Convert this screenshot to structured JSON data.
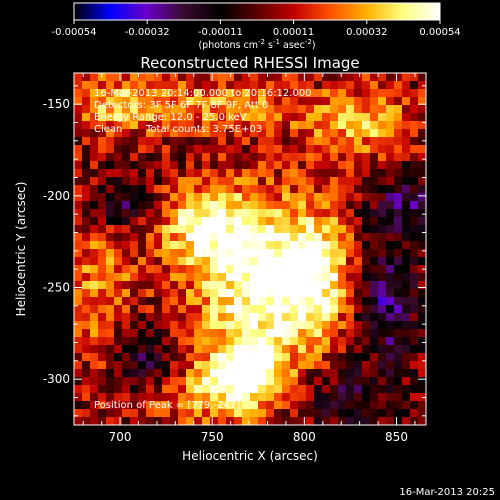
{
  "chart_data": {
    "type": "heatmap",
    "title": "Reconstructed RHESSI Image",
    "xlabel": "Heliocentric X (arcsec)",
    "ylabel": "Heliocentric Y (arcsec)",
    "xlim": [
      675,
      866
    ],
    "ylim": [
      -325,
      -133
    ],
    "x_ticks": [
      700,
      750,
      800,
      850
    ],
    "y_ticks": [
      -150,
      -200,
      -250,
      -300
    ],
    "colorbar": {
      "range": [
        -0.00054,
        0.00054
      ],
      "ticks": [
        "-0.00054",
        "-0.00032",
        "-0.00011",
        "0.00011",
        "0.00032",
        "0.00054"
      ],
      "unit_text": "(photons cm",
      "unit_exp1": "-2",
      "unit_mid": " s",
      "unit_exp2": "-1",
      "unit_mid2": " asec",
      "unit_exp3": "-2",
      "unit_end": ")",
      "colormap": [
        "#000000",
        "#0000ff",
        "#6a00c8",
        "#3a0a2e",
        "#000000",
        "#5a0000",
        "#c00000",
        "#ff5000",
        "#ffb000",
        "#ffff80",
        "#ffffff"
      ]
    },
    "annotations": {
      "time": "16-Mar-2013 20:14:00.000 to 20:16:12.000",
      "detectors": "Detectors: 3F 5F 6F 7F 8F 9F, Att 0",
      "energy": "Energy Range: 12.0 - 25.0 keV",
      "method": "Clean",
      "counts": "Total counts: 3.75E+03",
      "peak": "Position of Peak = [779,-247]"
    },
    "peak": {
      "x": 779,
      "y": -247
    },
    "blobs": [
      {
        "x": 778,
        "y": -247,
        "sx": 28,
        "sy": 32,
        "a": 1.0
      },
      {
        "x": 768,
        "y": -295,
        "sx": 14,
        "sy": 12,
        "a": 0.95
      },
      {
        "x": 745,
        "y": -215,
        "sx": 16,
        "sy": 14,
        "a": 0.7
      },
      {
        "x": 805,
        "y": -240,
        "sx": 12,
        "sy": 20,
        "a": 0.6
      },
      {
        "x": 830,
        "y": -160,
        "sx": 22,
        "sy": 14,
        "a": 0.55
      },
      {
        "x": 690,
        "y": -250,
        "sx": 14,
        "sy": 30,
        "a": 0.45
      },
      {
        "x": 700,
        "y": -150,
        "sx": 20,
        "sy": 12,
        "a": 0.55
      },
      {
        "x": 760,
        "y": -150,
        "sx": 24,
        "sy": 10,
        "a": 0.5
      },
      {
        "x": 745,
        "y": -310,
        "sx": 30,
        "sy": 10,
        "a": 0.45
      },
      {
        "x": 845,
        "y": -260,
        "sx": 12,
        "sy": 22,
        "a": -0.6
      },
      {
        "x": 700,
        "y": -205,
        "sx": 10,
        "sy": 10,
        "a": -0.55
      },
      {
        "x": 855,
        "y": -205,
        "sx": 14,
        "sy": 14,
        "a": -0.45
      },
      {
        "x": 712,
        "y": -290,
        "sx": 12,
        "sy": 16,
        "a": -0.5
      },
      {
        "x": 820,
        "y": -310,
        "sx": 20,
        "sy": 12,
        "a": -0.4
      }
    ]
  },
  "timestamp": "16-Mar-2013 20:25"
}
